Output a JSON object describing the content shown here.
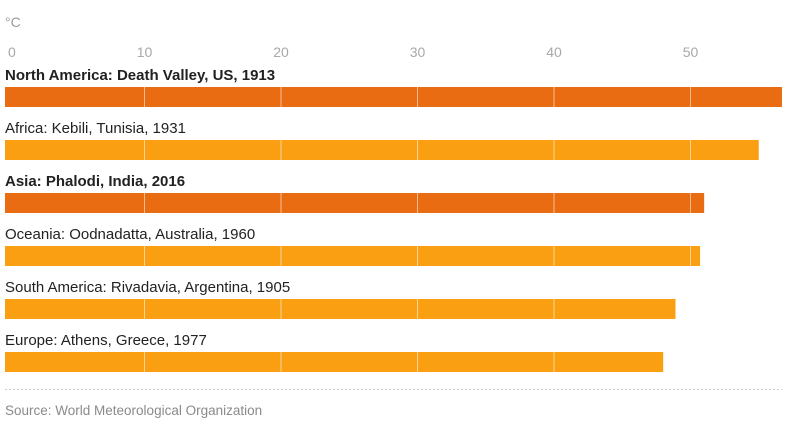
{
  "chart_data": {
    "type": "bar",
    "orientation": "horizontal",
    "unit_label": "°C",
    "xlim": [
      0,
      57
    ],
    "ticks": [
      0,
      10,
      20,
      30,
      40,
      50
    ],
    "tick_labels": [
      "0",
      "10",
      "20",
      "30",
      "40",
      "50"
    ],
    "grid": true,
    "categories": [
      "North America: Death Valley, US, 1913",
      "Africa: Kebili, Tunisia, 1931",
      "Asia: Phalodi, India, 2016",
      "Oceania: Oodnadatta, Australia, 1960",
      "South America: Rivadavia, Argentina, 1905",
      "Europe: Athens, Greece, 1977"
    ],
    "values": [
      56.7,
      55.0,
      51.0,
      50.7,
      48.9,
      48.0
    ],
    "highlighted": [
      true,
      false,
      true,
      false,
      false,
      false
    ],
    "colors": {
      "highlight": "#e96b12",
      "normal": "#fb9f12"
    },
    "source": "Source: World Meteorological Organization"
  }
}
